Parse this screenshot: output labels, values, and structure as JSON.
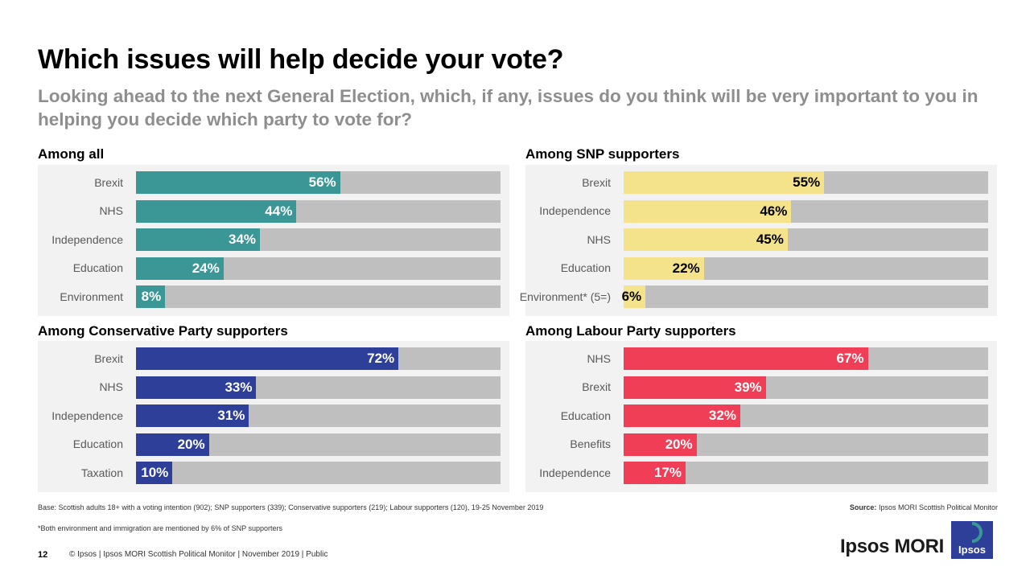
{
  "title": "Which issues will help decide your vote?",
  "subtitle": "Looking ahead to the next General Election, which, if any, issues do you think will be very important to you in helping you decide which party to vote for?",
  "chart_data": [
    {
      "type": "bar",
      "title": "Among all",
      "categories": [
        "Brexit",
        "NHS",
        "Independence",
        "Education",
        "Environment"
      ],
      "values": [
        56,
        44,
        34,
        24,
        8
      ],
      "labels": [
        "56%",
        "44%",
        "34%",
        "24%",
        "8%"
      ],
      "color": "#3b9696",
      "label_color": "#ffffff",
      "xlim": [
        0,
        100
      ],
      "orientation": "horizontal"
    },
    {
      "type": "bar",
      "title": "Among SNP supporters",
      "categories": [
        "Brexit",
        "Independence",
        "NHS",
        "Education",
        "Environment* (5=)"
      ],
      "values": [
        55,
        46,
        45,
        22,
        6
      ],
      "labels": [
        "55%",
        "46%",
        "45%",
        "22%",
        "6%"
      ],
      "color": "#f4e38a",
      "label_color": "#000000",
      "xlim": [
        0,
        100
      ],
      "orientation": "horizontal"
    },
    {
      "type": "bar",
      "title": "Among Conservative Party supporters",
      "categories": [
        "Brexit",
        "NHS",
        "Independence",
        "Education",
        "Taxation"
      ],
      "values": [
        72,
        33,
        31,
        20,
        10
      ],
      "labels": [
        "72%",
        "33%",
        "31%",
        "20%",
        "10%"
      ],
      "color": "#2e3f9a",
      "label_color": "#ffffff",
      "xlim": [
        0,
        100
      ],
      "orientation": "horizontal"
    },
    {
      "type": "bar",
      "title": "Among Labour Party supporters",
      "categories": [
        "NHS",
        "Brexit",
        "Education",
        "Benefits",
        "Independence"
      ],
      "values": [
        67,
        39,
        32,
        20,
        17
      ],
      "labels": [
        "67%",
        "39%",
        "32%",
        "20%",
        "17%"
      ],
      "color": "#ef3e55",
      "label_color": "#ffffff",
      "xlim": [
        0,
        100
      ],
      "orientation": "horizontal"
    }
  ],
  "footnotes": {
    "base": "Base: Scottish adults 18+ with a voting intention (902); SNP supporters (339); Conservative supporters (219); Labour supporters (120), 19-25 November 2019",
    "source_label": "Source:",
    "source": "Ipsos MORI Scottish Political Monitor",
    "note": "*Both environment and immigration are mentioned by 6% of SNP supporters"
  },
  "footer": {
    "page_number": "12",
    "text": "© Ipsos | Ipsos MORI Scottish Political Monitor | November 2019 | Public"
  },
  "brand": {
    "name": "Ipsos MORI",
    "logo_text": "Ipsos",
    "logo_color": "#2e3f9a",
    "logo_accent": "#3b9696"
  }
}
